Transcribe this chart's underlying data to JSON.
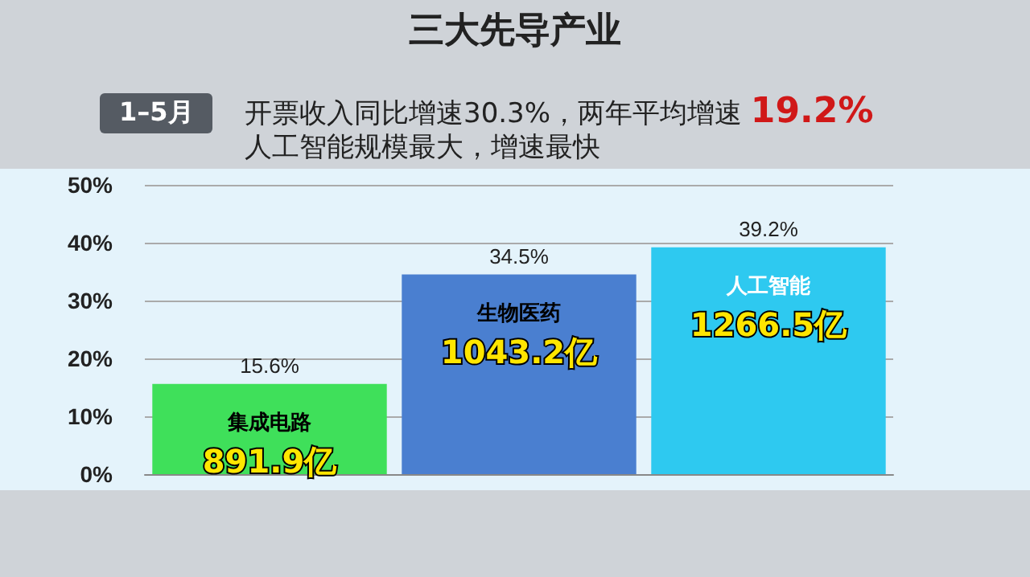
{
  "chart_data": {
    "type": "bar",
    "title": "三大先导产业",
    "subtitle": "开票收入同比增速30.3%，两年平均增速 19.2%",
    "annotations": [
      "1–5月",
      "人工智能规模最大，增速最快",
      "891.9亿",
      "1043.2亿",
      "1266.5亿"
    ],
    "categories": [
      "集成电路",
      "生物医药",
      "人工智能"
    ],
    "values": [
      15.6,
      34.5,
      39.2
    ],
    "value_labels": [
      "15.6%",
      "34.5%",
      "39.2%"
    ],
    "colors": [
      "#3fe05a",
      "#4a7fd0",
      "#2ec9f0"
    ],
    "ylim": [
      0,
      50
    ],
    "yticks": [
      {
        "value": 0,
        "label": "0%"
      },
      {
        "value": 10,
        "label": "10%"
      },
      {
        "value": 20,
        "label": "20%"
      },
      {
        "value": 30,
        "label": "30%"
      },
      {
        "value": 40,
        "label": "40%"
      },
      {
        "value": 50,
        "label": "50%"
      }
    ],
    "grid": "y"
  }
}
